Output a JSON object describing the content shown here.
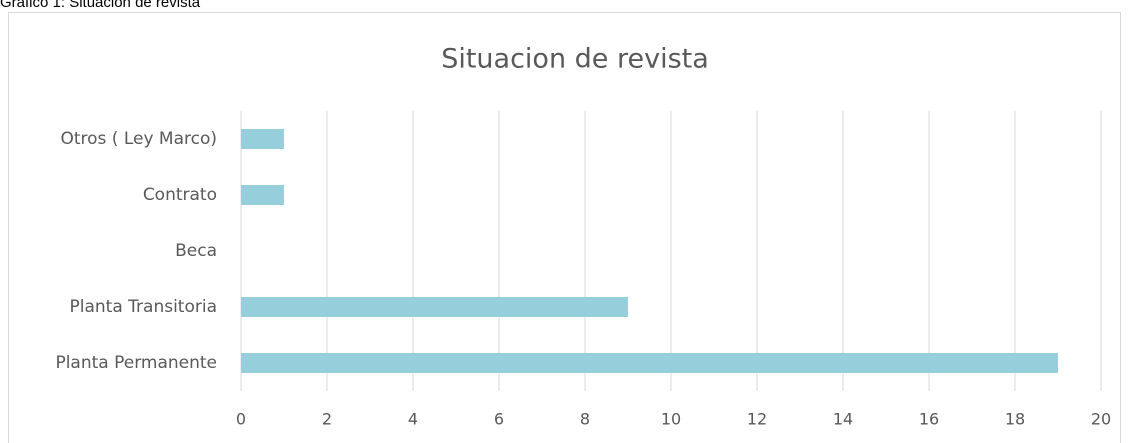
{
  "chart_data": {
    "type": "bar",
    "orientation": "horizontal",
    "caption": "Gráfico 1: Situación de revista",
    "title": "Situacion de revista",
    "categories": [
      "Planta Permanente",
      "Planta Transitoria",
      "Beca",
      "Contrato",
      "Otros ( Ley Marco)"
    ],
    "values": [
      19,
      9,
      0,
      1,
      1
    ],
    "color": "#96cedc",
    "xlim": [
      0,
      20
    ],
    "xticks": [
      0,
      2,
      4,
      6,
      8,
      10,
      12,
      14,
      16,
      18,
      20
    ],
    "grid": true
  }
}
